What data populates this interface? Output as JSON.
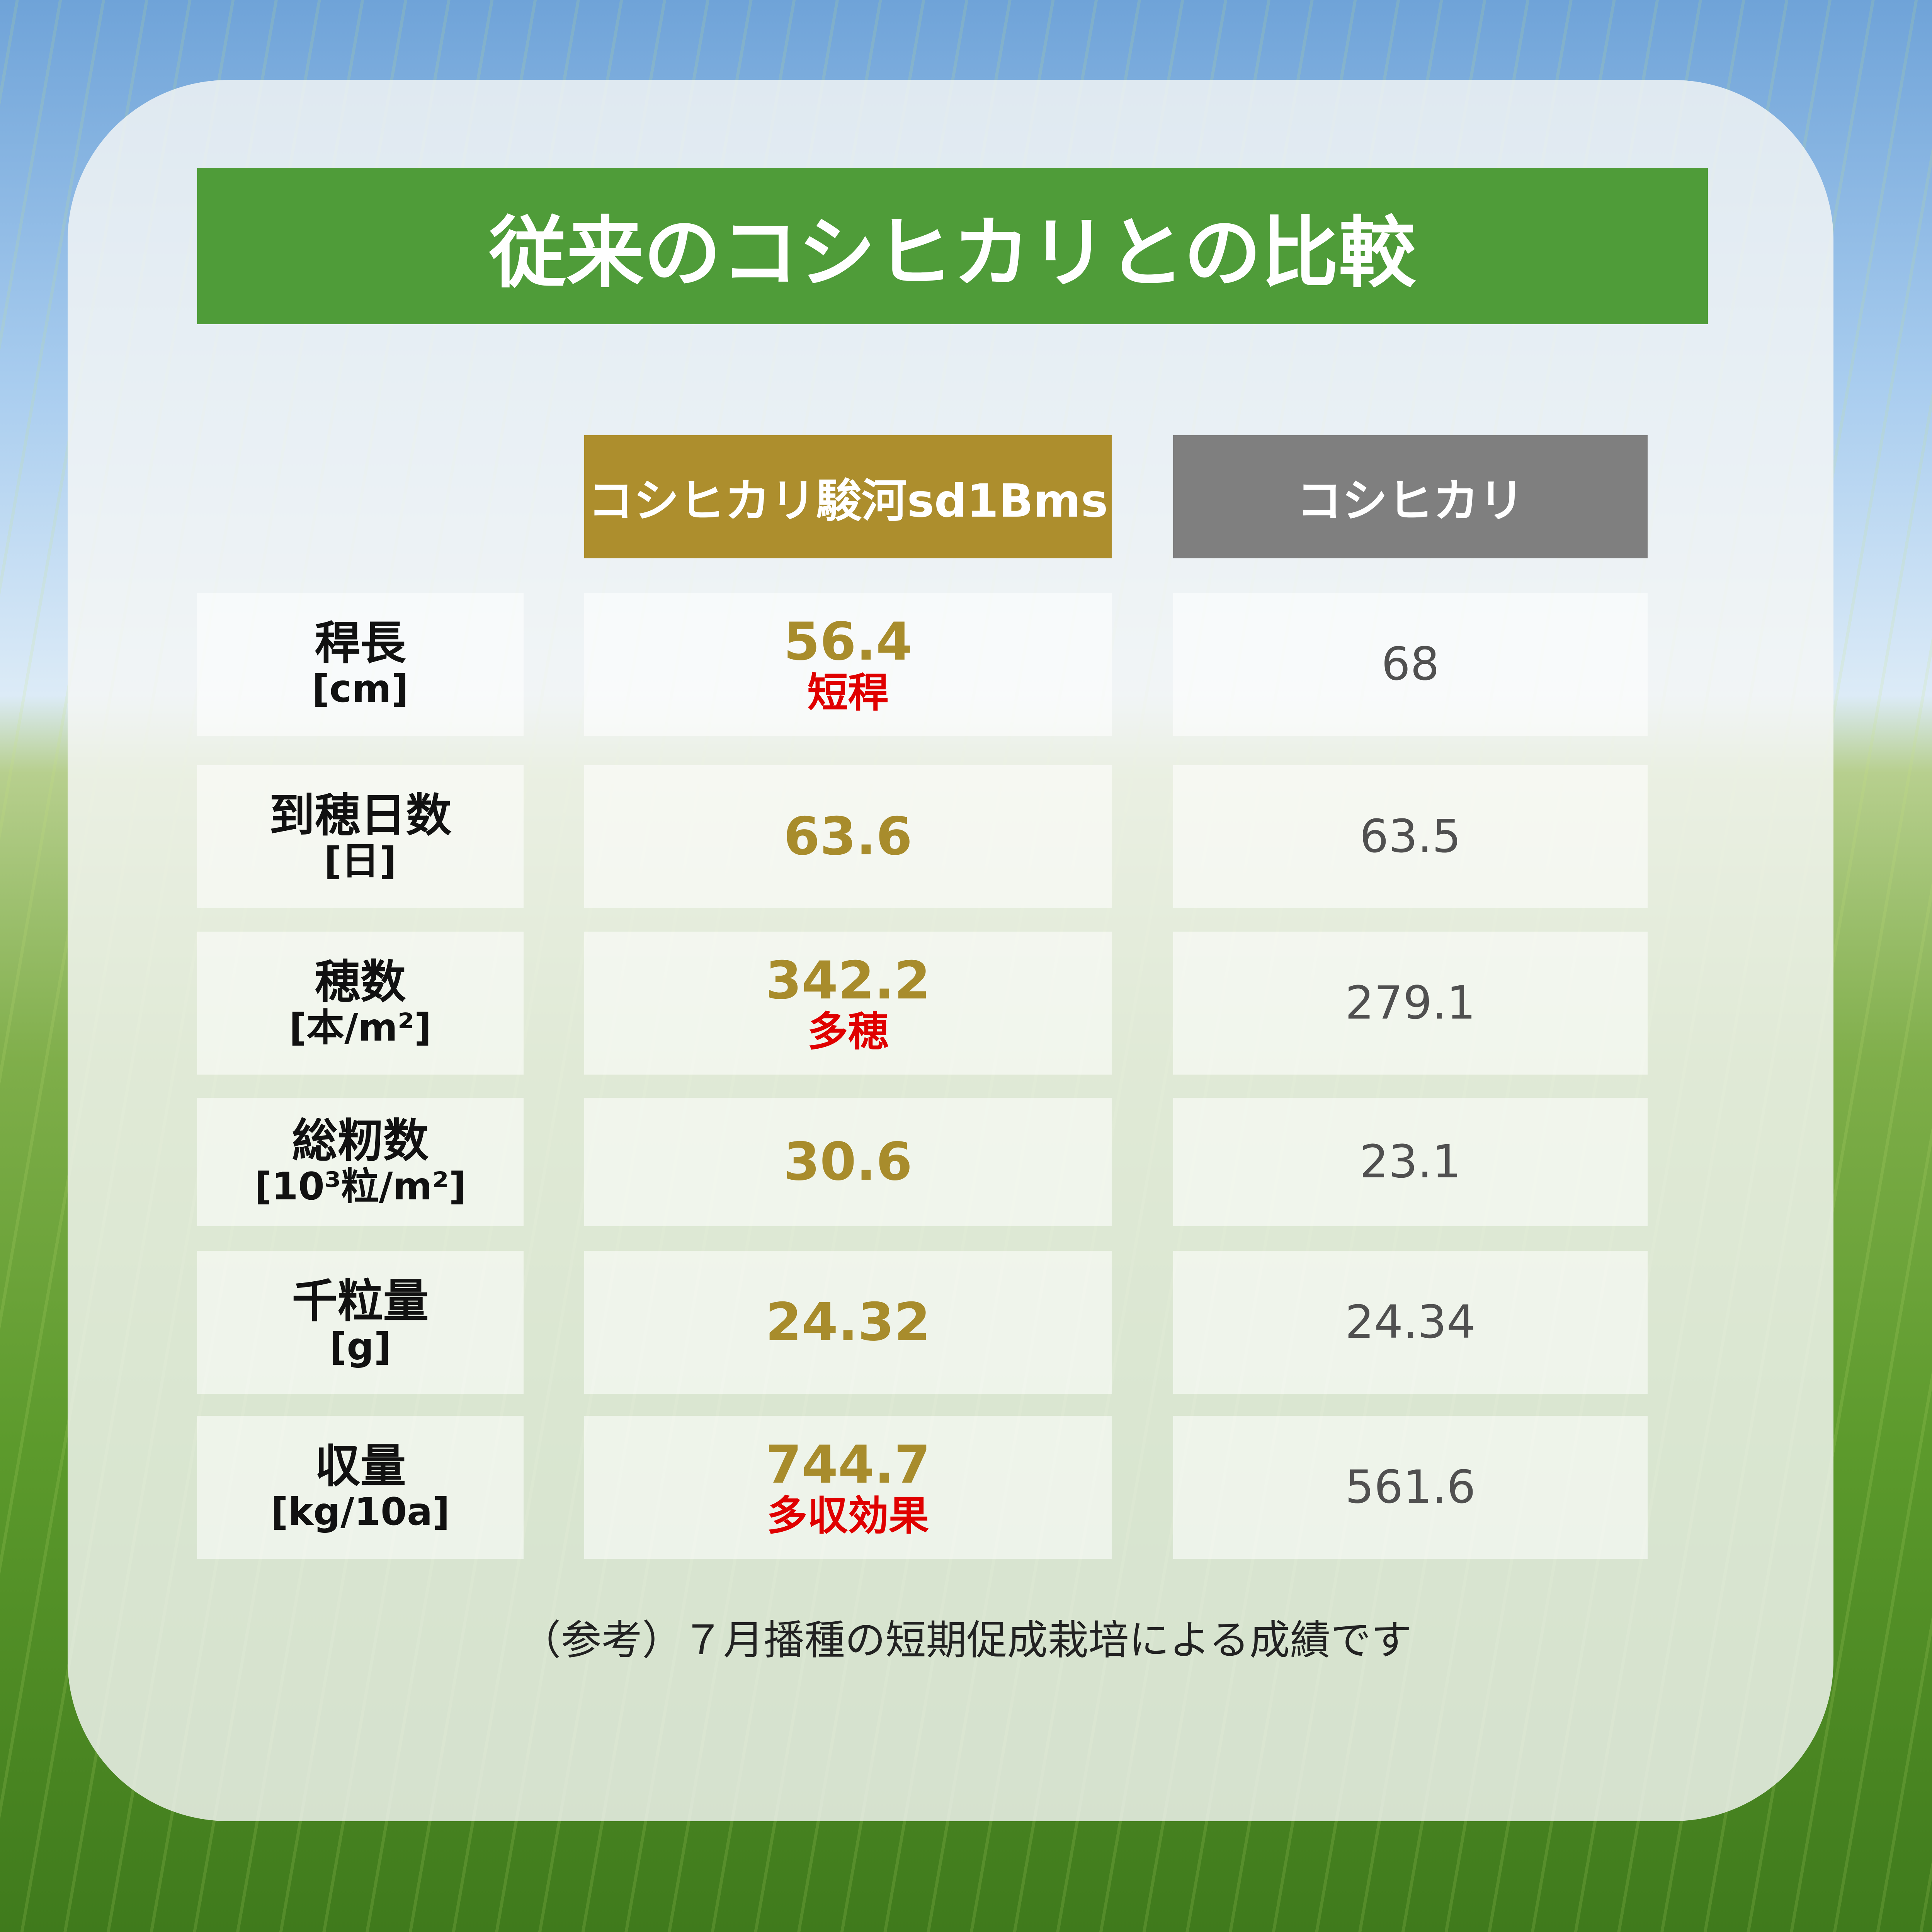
{
  "title": "従来のコシヒカリとの比較",
  "colors": {
    "title_bg": "#4f9c39",
    "col1_bg": "#ad8e2d",
    "col2_bg": "#7f7f7f",
    "value_accent": "#a88c2c",
    "note_red": "#e00000"
  },
  "columns": [
    {
      "label": "コシヒカリ駿河sd1Bms"
    },
    {
      "label": "コシヒカリ"
    }
  ],
  "rows": [
    {
      "name": "稈長",
      "unit": "[cm]",
      "new": "56.4",
      "note": "短稈",
      "old": "68"
    },
    {
      "name": "到穂日数",
      "unit": "[日]",
      "new": "63.6",
      "note": "",
      "old": "63.5"
    },
    {
      "name": "穂数",
      "unit": "[本/m²]",
      "new": "342.2",
      "note": "多穂",
      "old": "279.1"
    },
    {
      "name": "総籾数",
      "unit": "[10³粒/m²]",
      "new": "30.6",
      "note": "",
      "old": "23.1"
    },
    {
      "name": "千粒量",
      "unit": "[g]",
      "new": "24.32",
      "note": "",
      "old": "24.34"
    },
    {
      "name": "収量",
      "unit": "[kg/10a]",
      "new": "744.7",
      "note": "多収効果",
      "old": "561.6"
    }
  ],
  "footnote": "（参考）７月播種の短期促成栽培による成績です"
}
